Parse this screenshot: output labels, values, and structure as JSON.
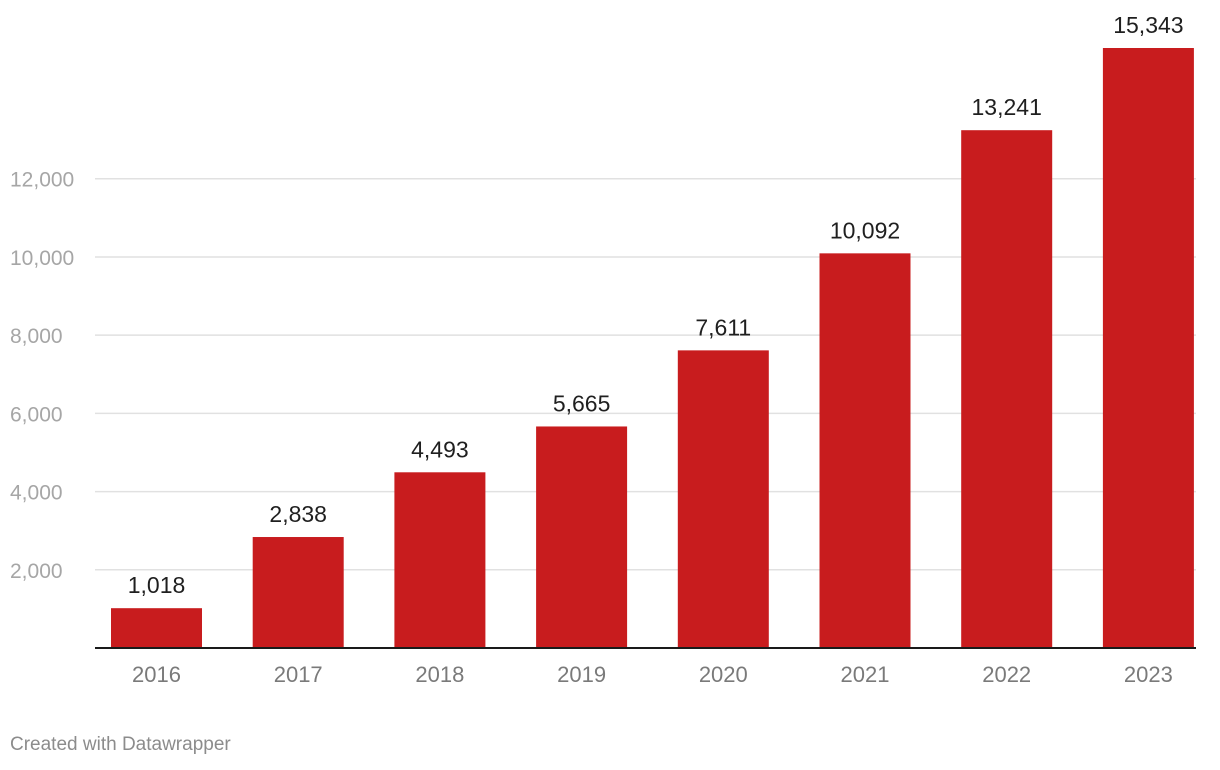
{
  "chart_data": {
    "type": "bar",
    "categories": [
      "2016",
      "2017",
      "2018",
      "2019",
      "2020",
      "2021",
      "2022",
      "2023"
    ],
    "values": [
      1018,
      2838,
      4493,
      5665,
      7611,
      10092,
      13241,
      15343
    ],
    "value_labels": [
      "1,018",
      "2,838",
      "4,493",
      "5,665",
      "7,611",
      "10,092",
      "13,241",
      "15,343"
    ],
    "ylim": [
      0,
      15343
    ],
    "yticks": [
      2000,
      4000,
      6000,
      8000,
      10000,
      12000
    ],
    "ytick_labels": [
      "2,000",
      "4,000",
      "6,000",
      "8,000",
      "10,000",
      "12,000"
    ],
    "grid": true,
    "bar_color": "#c81c1e"
  },
  "footer": {
    "credit": "Created with Datawrapper"
  }
}
